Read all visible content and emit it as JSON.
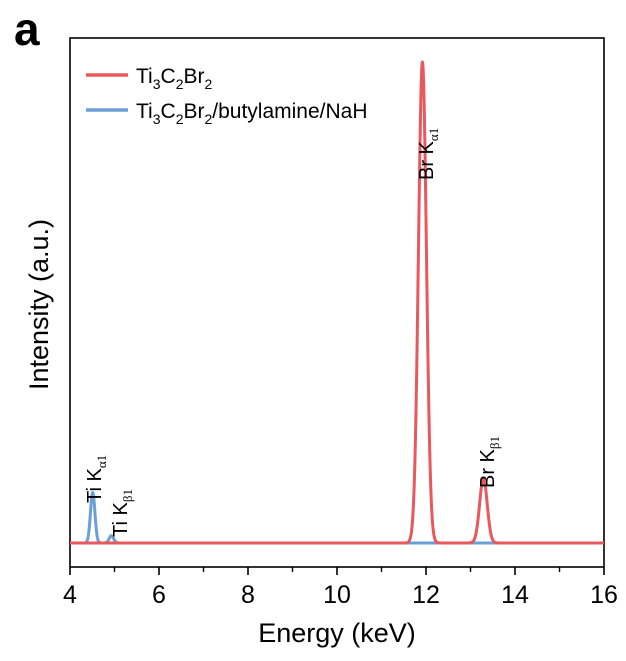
{
  "panel_label": "a",
  "chart_data": {
    "type": "line",
    "title": "",
    "xlabel": "Energy (keV)",
    "ylabel": "Intensity (a.u.)",
    "xlim": [
      4,
      16
    ],
    "ylim": [
      0,
      1.1
    ],
    "x_ticks": [
      4,
      6,
      8,
      10,
      12,
      14,
      16
    ],
    "x_tick_labels": [
      "4",
      "6",
      "8",
      "10",
      "12",
      "14",
      "16"
    ],
    "y_ticks_shown": false,
    "grid": false,
    "legend_position": "top-left",
    "series": [
      {
        "name": "Ti3C2Br2",
        "color": "#e8585c",
        "baseline": 0.05,
        "peaks": [
          {
            "x": 11.92,
            "height": 1.0,
            "sigma": 0.09
          },
          {
            "x": 13.29,
            "height": 0.135,
            "sigma": 0.085
          }
        ]
      },
      {
        "name": "Ti3C2Br2/butylamine/NaH",
        "color": "#6a9fd8",
        "baseline": 0.05,
        "peaks": [
          {
            "x": 4.51,
            "height": 0.105,
            "sigma": 0.05
          },
          {
            "x": 4.93,
            "height": 0.015,
            "sigma": 0.05
          }
        ]
      }
    ],
    "annotations": [
      {
        "element": "Ti",
        "line": "α1",
        "x": 4.51
      },
      {
        "element": "Ti",
        "line": "β1",
        "x": 4.93
      },
      {
        "element": "Br",
        "line": "α1",
        "x": 11.92
      },
      {
        "element": "Br",
        "line": "β1",
        "x": 13.29
      }
    ]
  },
  "legend_entries": [
    {
      "base": "Ti",
      "sub1": "3",
      "mid": "C",
      "sub2": "2",
      "tail": "Br",
      "sub3": "2",
      "suffix": ""
    },
    {
      "base": "Ti",
      "sub1": "3",
      "mid": "C",
      "sub2": "2",
      "tail": "Br",
      "sub3": "2",
      "suffix": "/butylamine/NaH"
    }
  ]
}
